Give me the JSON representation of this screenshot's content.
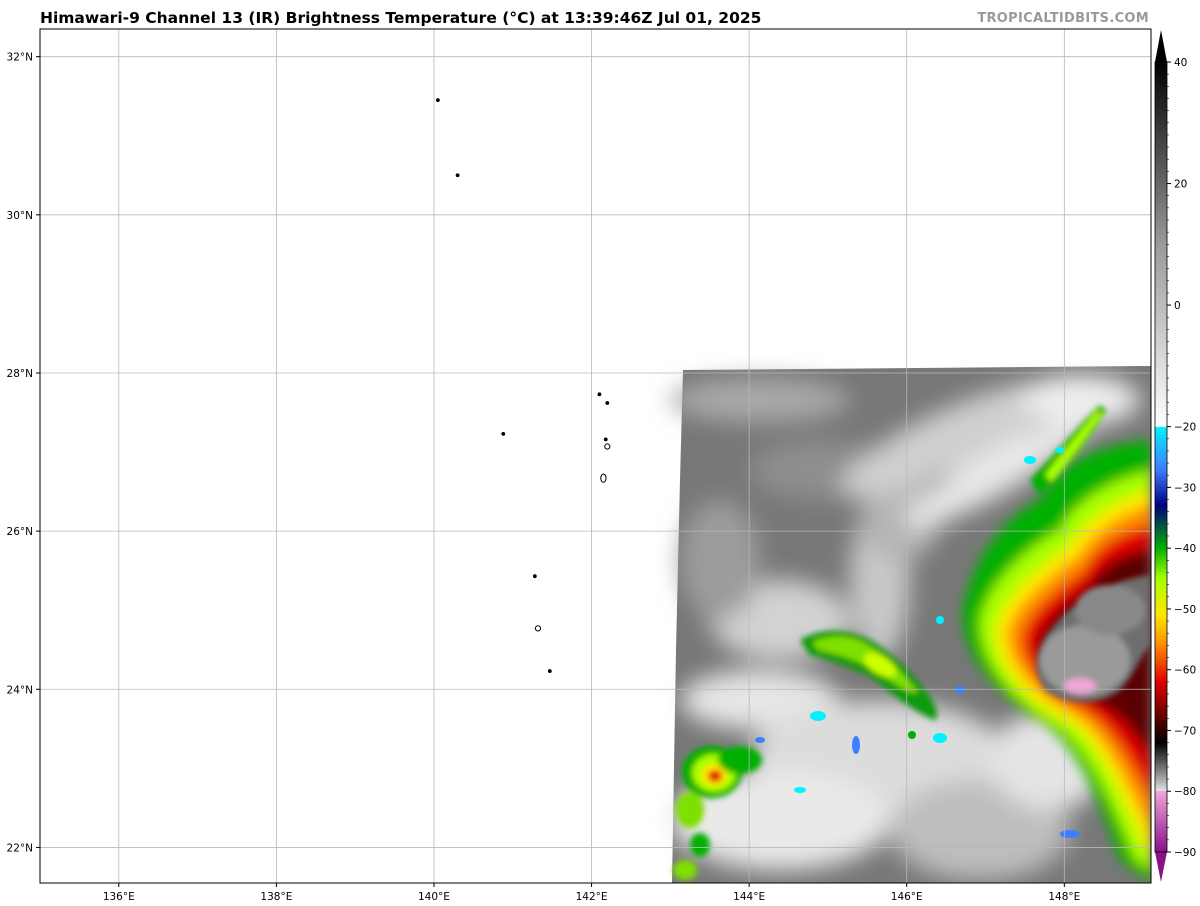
{
  "title": "Himawari-9 Channel 13 (IR) Brightness Temperature (°C) at 13:39:46Z Jul 01, 2025",
  "credit": "TROPICALTIDBITS.COM",
  "map": {
    "lon_range": [
      135.0,
      149.1
    ],
    "lat_range": [
      21.55,
      32.35
    ],
    "lon_ticks": [
      {
        "value": 136,
        "label": "136°E"
      },
      {
        "value": 138,
        "label": "138°E"
      },
      {
        "value": 140,
        "label": "140°E"
      },
      {
        "value": 142,
        "label": "142°E"
      },
      {
        "value": 144,
        "label": "144°E"
      },
      {
        "value": 146,
        "label": "146°E"
      },
      {
        "value": 148,
        "label": "148°E"
      }
    ],
    "lat_ticks": [
      {
        "value": 22,
        "label": "22°N"
      },
      {
        "value": 24,
        "label": "24°N"
      },
      {
        "value": 26,
        "label": "26°N"
      },
      {
        "value": 28,
        "label": "28°N"
      },
      {
        "value": 30,
        "label": "30°N"
      },
      {
        "value": 32,
        "label": "32°N"
      }
    ],
    "grid": true,
    "data_region": {
      "lon_min": 143.1,
      "lat_max": 28.05
    },
    "islands": [
      {
        "lon": 140.05,
        "lat": 31.45
      },
      {
        "lon": 140.3,
        "lat": 30.5
      },
      {
        "lon": 140.88,
        "lat": 27.23
      },
      {
        "lon": 142.1,
        "lat": 27.73
      },
      {
        "lon": 142.2,
        "lat": 27.62
      },
      {
        "lon": 142.18,
        "lat": 27.16
      },
      {
        "lon": 142.2,
        "lat": 27.07
      },
      {
        "lon": 142.15,
        "lat": 26.67
      },
      {
        "lon": 141.28,
        "lat": 25.43
      },
      {
        "lon": 141.32,
        "lat": 24.77
      },
      {
        "lon": 141.47,
        "lat": 24.23
      }
    ],
    "cloud_features": [
      {
        "type": "cold-cloud-band",
        "lon": 145.6,
        "lat": 24.3
      },
      {
        "type": "storm-core",
        "lon": 148.2,
        "lat": 24.6
      },
      {
        "type": "convective-cell",
        "lon": 143.5,
        "lat": 22.9
      }
    ]
  },
  "colorbar": {
    "min": -90,
    "max": 40,
    "ticks": [
      {
        "value": 40,
        "label": "40"
      },
      {
        "value": 20,
        "label": "20"
      },
      {
        "value": 0,
        "label": "0"
      },
      {
        "value": -20,
        "label": "−20"
      },
      {
        "value": -30,
        "label": "−30"
      },
      {
        "value": -40,
        "label": "−40"
      },
      {
        "value": -50,
        "label": "−50"
      },
      {
        "value": -60,
        "label": "−60"
      },
      {
        "value": -70,
        "label": "−70"
      },
      {
        "value": -80,
        "label": "−80"
      },
      {
        "value": -90,
        "label": "−90"
      }
    ],
    "stops": [
      {
        "value": -90,
        "color": "#8a108a"
      },
      {
        "value": -80,
        "color": "#f2a6d8"
      },
      {
        "value": -79.9,
        "color": "#e0e0e0"
      },
      {
        "value": -77,
        "color": "#8c8c8c"
      },
      {
        "value": -72,
        "color": "#000000"
      },
      {
        "value": -68,
        "color": "#5a0000"
      },
      {
        "value": -62,
        "color": "#e00000"
      },
      {
        "value": -56,
        "color": "#ff8a00"
      },
      {
        "value": -51,
        "color": "#ffe600"
      },
      {
        "value": -45,
        "color": "#a8ff00"
      },
      {
        "value": -40,
        "color": "#00b000"
      },
      {
        "value": -33,
        "color": "#000080"
      },
      {
        "value": -27,
        "color": "#3f7fff"
      },
      {
        "value": -20.1,
        "color": "#00f2ff"
      },
      {
        "value": -20,
        "color": "#ffffff"
      },
      {
        "value": 10,
        "color": "#9a9a9a"
      },
      {
        "value": 40,
        "color": "#000000"
      }
    ]
  }
}
